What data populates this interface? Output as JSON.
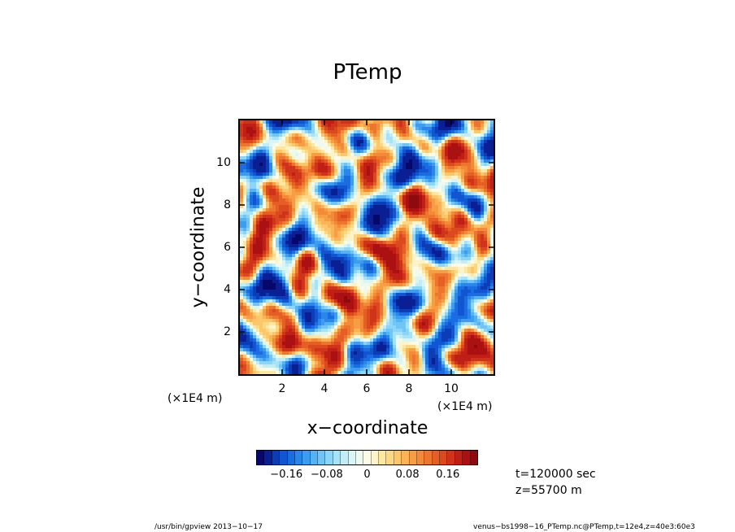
{
  "chart_data": {
    "type": "heatmap",
    "title": "PTemp",
    "xlabel": "x−coordinate",
    "ylabel": "y−coordinate",
    "x_multiplier_label": "(×1E4 m)",
    "y_multiplier_label": "(×1E4 m)",
    "xlim": [
      0,
      12
    ],
    "ylim": [
      0,
      12
    ],
    "x_ticks": [
      2,
      4,
      6,
      8,
      10
    ],
    "y_ticks": [
      2,
      4,
      6,
      8,
      10
    ],
    "x_tick_labels": [
      "2",
      "4",
      "6",
      "8",
      "10"
    ],
    "y_tick_labels": [
      "2",
      "4",
      "6",
      "8",
      "10"
    ],
    "colorbar": {
      "range": [
        -0.22,
        0.22
      ],
      "tick_values": [
        -0.16,
        -0.08,
        0,
        0.08,
        0.16
      ],
      "tick_labels": [
        "−0.16",
        "−0.08",
        "0",
        "0.08",
        "0.16"
      ],
      "colors": [
        "#08086b",
        "#0a1f94",
        "#0c3cb6",
        "#1156d0",
        "#1a6de0",
        "#2a86e8",
        "#3d9cef",
        "#55b2f3",
        "#6fc6f6",
        "#8bd6f8",
        "#a7e3f8",
        "#c2edf7",
        "#dbf4f4",
        "#eef9f0",
        "#fbfbe6",
        "#fdf3c8",
        "#fde7a3",
        "#fdd883",
        "#fcc66a",
        "#fab356",
        "#f79e45",
        "#f38a38",
        "#ed752d",
        "#e55f25",
        "#db491f",
        "#cf341a",
        "#c01f16",
        "#ab1012",
        "#8f0a0e"
      ]
    },
    "annotations": [
      "t=120000 sec",
      "z=55700 m"
    ]
  },
  "footer": {
    "left": "/usr/bin/gpview   2013−10−17",
    "right": "venus−bs1998−16_PTemp.nc@PTemp,t=12e4,z=40e3:60e3"
  }
}
